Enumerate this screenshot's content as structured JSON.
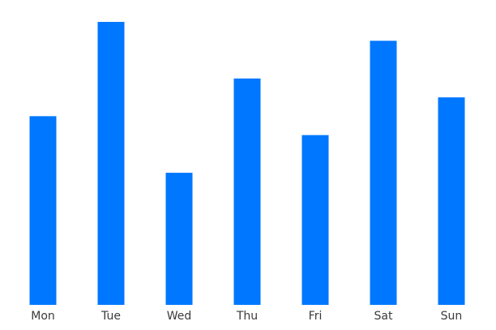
{
  "chart_data": {
    "type": "bar",
    "categories": [
      "Mon",
      "Tue",
      "Wed",
      "Thu",
      "Fri",
      "Sat",
      "Sun"
    ],
    "values": [
      100,
      150,
      70,
      120,
      90,
      140,
      110
    ],
    "ylim": [
      0,
      150
    ],
    "grid": false,
    "axes_visible": false,
    "bar_color": "#0077ff",
    "label_color": "#3a3a3a",
    "title": "",
    "xlabel": "",
    "ylabel": ""
  }
}
